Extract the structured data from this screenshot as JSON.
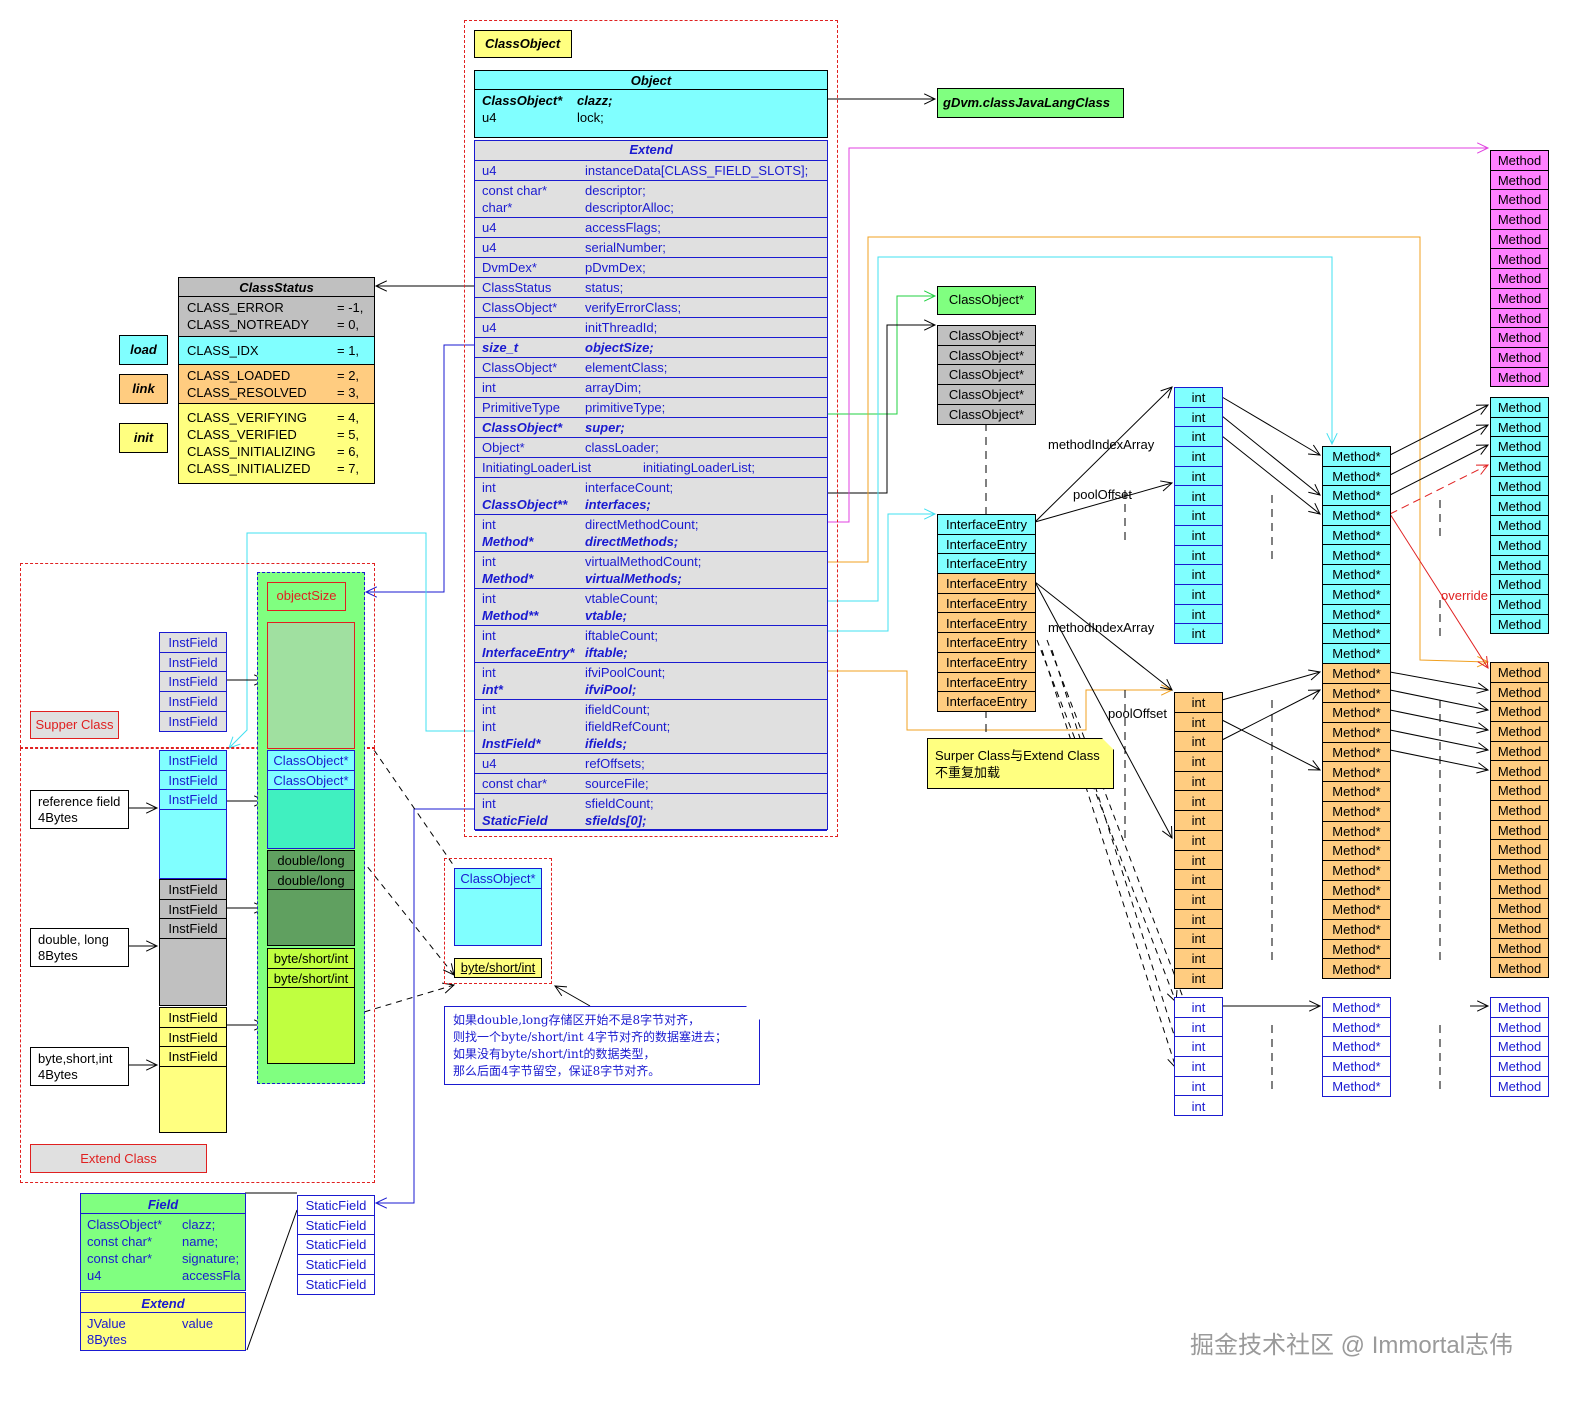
{
  "colors": {
    "cyan": "#80ffff",
    "orange": "#ffcc80",
    "yellow": "#ffff80",
    "grey": "#c0c0c0",
    "green": "#80ff80",
    "magenta": "#ff80ff",
    "blue": "#1a1ad0",
    "red": "#e02020"
  },
  "class_object_label": "ClassObject",
  "object": {
    "title": "Object",
    "rows": [
      {
        "type": "ClassObject*",
        "name": "clazz;",
        "bold": true
      },
      {
        "type": "u4",
        "name": "lock;"
      }
    ]
  },
  "extend": {
    "title": "Extend",
    "groups": [
      [
        {
          "type": "u4",
          "name": "instanceData[CLASS_FIELD_SLOTS];"
        }
      ],
      [
        {
          "type": "const char*",
          "name": "descriptor;"
        },
        {
          "type": "char*",
          "name": "descriptorAlloc;"
        }
      ],
      [
        {
          "type": "u4",
          "name": "accessFlags;"
        }
      ],
      [
        {
          "type": "u4",
          "name": "serialNumber;"
        }
      ],
      [
        {
          "type": "DvmDex*",
          "name": "pDvmDex;"
        }
      ],
      [
        {
          "type": "ClassStatus",
          "name": "status;"
        }
      ],
      [
        {
          "type": "ClassObject*",
          "name": "verifyErrorClass;"
        }
      ],
      [
        {
          "type": "u4",
          "name": "initThreadId;"
        }
      ],
      [
        {
          "type": "size_t",
          "name": "objectSize;",
          "bold": true
        }
      ],
      [
        {
          "type": "ClassObject*",
          "name": "elementClass;"
        }
      ],
      [
        {
          "type": "int",
          "name": "arrayDim;"
        }
      ],
      [
        {
          "type": "PrimitiveType",
          "name": "primitiveType;"
        }
      ],
      [
        {
          "type": "ClassObject*",
          "name": "super;",
          "bold": true
        }
      ],
      [
        {
          "type": "Object*",
          "name": "classLoader;"
        }
      ],
      [
        {
          "type": "InitiatingLoaderList",
          "name": "initiatingLoaderList;",
          "wide": true
        }
      ],
      [
        {
          "type": "int",
          "name": "interfaceCount;"
        },
        {
          "type": "ClassObject**",
          "name": "interfaces;",
          "bold": true
        }
      ],
      [
        {
          "type": "int",
          "name": "directMethodCount;"
        },
        {
          "type": "Method*",
          "name": "directMethods;",
          "bold": true
        }
      ],
      [
        {
          "type": "int",
          "name": "virtualMethodCount;"
        },
        {
          "type": "Method*",
          "name": "virtualMethods;",
          "bold": true
        }
      ],
      [
        {
          "type": "int",
          "name": "vtableCount;"
        },
        {
          "type": "Method**",
          "name": "vtable;",
          "bold": true
        }
      ],
      [
        {
          "type": "int",
          "name": "iftableCount;"
        },
        {
          "type": "InterfaceEntry*",
          "name": "iftable;",
          "bold": true
        }
      ],
      [
        {
          "type": "int",
          "name": "ifviPoolCount;"
        },
        {
          "type": "int*",
          "name": "ifviPool;",
          "bold": true
        }
      ],
      [
        {
          "type": "int",
          "name": "ifieldCount;"
        },
        {
          "type": "int",
          "name": "ifieldRefCount;"
        },
        {
          "type": "InstField*",
          "name": "ifields;",
          "bold": true
        }
      ],
      [
        {
          "type": "u4",
          "name": "refOffsets;"
        }
      ],
      [
        {
          "type": "const char*",
          "name": "sourceFile;"
        }
      ],
      [
        {
          "type": "int",
          "name": "sfieldCount;"
        },
        {
          "type": "StaticField",
          "name": "sfields[0];",
          "bold": true
        }
      ]
    ]
  },
  "gdvm": "gDvm.classJavaLangClass",
  "class_status": {
    "title": "ClassStatus",
    "groups": [
      {
        "color": "grey",
        "items": [
          {
            "name": "CLASS_ERROR",
            "value": "= -1,"
          },
          {
            "name": "CLASS_NOTREADY",
            "value": "= 0,"
          }
        ]
      },
      {
        "color": "cyan",
        "items": [
          {
            "name": "CLASS_IDX",
            "value": "= 1,"
          }
        ]
      },
      {
        "color": "orange",
        "items": [
          {
            "name": "CLASS_LOADED",
            "value": "= 2,"
          },
          {
            "name": "CLASS_RESOLVED",
            "value": "= 3,"
          }
        ]
      },
      {
        "color": "yellow",
        "items": [
          {
            "name": "CLASS_VERIFYING",
            "value": "= 4,"
          },
          {
            "name": "CLASS_VERIFIED",
            "value": "= 5,"
          },
          {
            "name": "CLASS_INITIALIZING",
            "value": "= 6,"
          },
          {
            "name": "CLASS_INITIALIZED",
            "value": "= 7,"
          }
        ]
      }
    ]
  },
  "phases": [
    "load",
    "link",
    "init"
  ],
  "super_class_ptr": "ClassObject*",
  "interfaces": [
    "ClassObject*",
    "ClassObject*",
    "ClassObject*",
    "ClassObject*",
    "ClassObject*"
  ],
  "iftable": [
    "InterfaceEntry",
    "InterfaceEntry",
    "InterfaceEntry",
    "InterfaceEntry",
    "InterfaceEntry",
    "InterfaceEntry",
    "InterfaceEntry",
    "InterfaceEntry",
    "InterfaceEntry",
    "InterfaceEntry"
  ],
  "ifvi_pool": {
    "cyan": [
      "int",
      "int",
      "int",
      "int",
      "int",
      "int",
      "int",
      "int",
      "int",
      "int",
      "int",
      "int",
      "int"
    ],
    "orange": [
      "int",
      "int",
      "int",
      "int",
      "int",
      "int",
      "int",
      "int",
      "int",
      "int",
      "int",
      "int",
      "int",
      "int",
      "int"
    ],
    "white": [
      "int",
      "int",
      "int",
      "int",
      "int",
      "int"
    ]
  },
  "labels": {
    "method_index_array_1": "methodIndexArray",
    "pool_offset_1": "poolOffset",
    "method_index_array_2": "methodIndexArray",
    "pool_offset_2": "poolOffset",
    "override": "override"
  },
  "vtable": {
    "cyan": [
      "Method*",
      "Method*",
      "Method*",
      "Method*",
      "Method*",
      "Method*",
      "Method*",
      "Method*",
      "Method*",
      "Method*",
      "Method*"
    ],
    "orange": [
      "Method*",
      "Method*",
      "Method*",
      "Method*",
      "Method*",
      "Method*",
      "Method*",
      "Method*",
      "Method*",
      "Method*",
      "Method*",
      "Method*",
      "Method*",
      "Method*",
      "Method*",
      "Method*"
    ],
    "white": [
      "Method*",
      "Method*",
      "Method*",
      "Method*",
      "Method*"
    ]
  },
  "methods": {
    "direct": [
      "Method",
      "Method",
      "Method",
      "Method",
      "Method",
      "Method",
      "Method",
      "Method",
      "Method",
      "Method",
      "Method",
      "Method"
    ],
    "cyan": [
      "Method",
      "Method",
      "Method",
      "Method",
      "Method",
      "Method",
      "Method",
      "Method",
      "Method",
      "Method",
      "Method",
      "Method"
    ],
    "orange": [
      "Method",
      "Method",
      "Method",
      "Method",
      "Method",
      "Method",
      "Method",
      "Method",
      "Method",
      "Method",
      "Method",
      "Method",
      "Method",
      "Method",
      "Method",
      "Method"
    ],
    "white": [
      "Method",
      "Method",
      "Method",
      "Method",
      "Method"
    ]
  },
  "note_super_extend": [
    "Surper Class与Extend Class",
    "不重复加载"
  ],
  "left": {
    "super_class_label": "Supper Class",
    "extend_class_label": "Extend Class",
    "super_ifields": [
      "InstField",
      "InstField",
      "InstField",
      "InstField",
      "InstField"
    ],
    "ref_ifields": [
      "InstField",
      "InstField",
      "InstField"
    ],
    "wide_ifields": [
      "InstField",
      "InstField",
      "InstField"
    ],
    "prim_ifields": [
      "InstField",
      "InstField",
      "InstField"
    ],
    "ref_field_note": [
      "reference field",
      "4Bytes"
    ],
    "wide_field_note": [
      "double, long",
      "8Bytes"
    ],
    "prim_field_note": [
      "byte,short,int",
      "4Bytes"
    ]
  },
  "instance": {
    "object_size": "objectSize",
    "refs": [
      "ClassObject*",
      "ClassObject*"
    ],
    "wides": [
      "double/long",
      "double/long"
    ],
    "prims": [
      "byte/short/int",
      "byte/short/int"
    ]
  },
  "padding_example": {
    "ref": "ClassObject*",
    "prim": "byte/short/int"
  },
  "alignment_note": [
    "如果double,long存储区开始不是8字节对齐，",
    "则找一个byte/short/int 4字节对齐的数据塞进去；",
    "如果没有byte/short/int的数据类型，",
    "那么后面4字节留空，保证8字节对齐。"
  ],
  "field": {
    "title": "Field",
    "rows": [
      {
        "type": "ClassObject*",
        "name": "clazz;"
      },
      {
        "type": "const char*",
        "name": "name;"
      },
      {
        "type": "const char*",
        "name": "signature;"
      },
      {
        "type": "u4",
        "name": "accessFla"
      }
    ],
    "extend_title": "Extend",
    "extend_rows": [
      {
        "type": "JValue",
        "name": "value"
      },
      {
        "type": "8Bytes",
        "name": ""
      }
    ]
  },
  "static_fields": [
    "StaticField",
    "StaticField",
    "StaticField",
    "StaticField",
    "StaticField"
  ],
  "watermark": "掘金技术社区 @ Immortal志伟"
}
